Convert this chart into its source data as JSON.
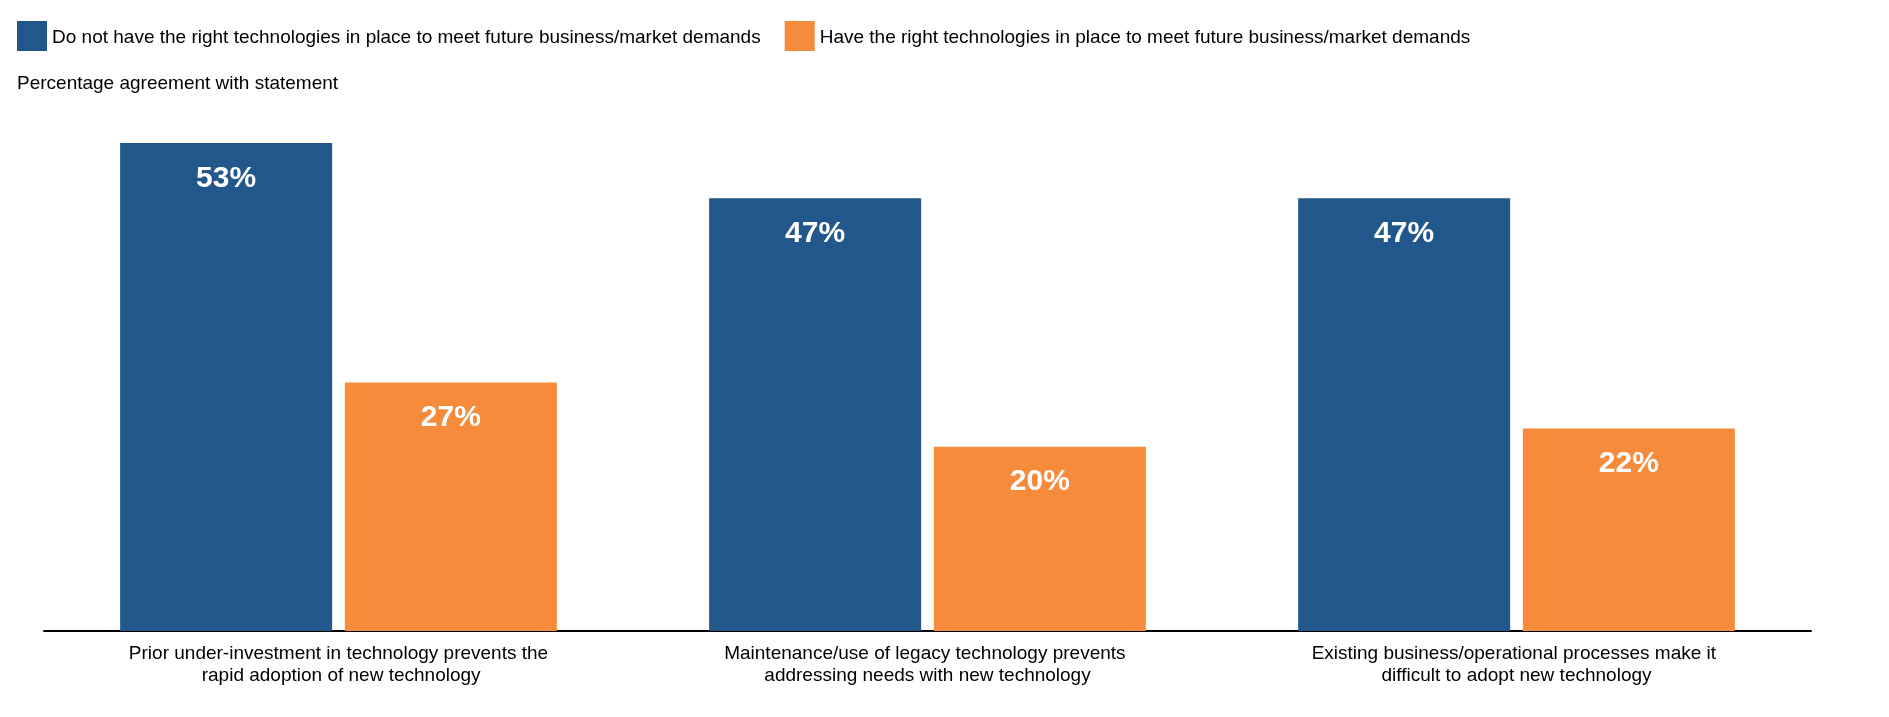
{
  "chart_data": {
    "type": "bar",
    "subtitle": "Percentage agreement with statement",
    "categories": [
      "Prior under-investment in technology prevents the rapid adoption of new technology",
      "Maintenance/use of legacy technology prevents addressing needs with new technology",
      "Existing business/operational processes make it difficult to adopt new technology"
    ],
    "series": [
      {
        "name": "Do not have the right technologies in place to meet future business/market demands",
        "color": "#22578b",
        "values": [
          53,
          47,
          47
        ],
        "value_labels": [
          "53%",
          "47%",
          "47%"
        ]
      },
      {
        "name": "Have the right technologies in place to meet future business/market demands",
        "color": "#f68b3c",
        "values": [
          27,
          20,
          22
        ],
        "value_labels": [
          "27%",
          "20%",
          "22%"
        ]
      }
    ],
    "legend": "top left",
    "grid": false
  }
}
